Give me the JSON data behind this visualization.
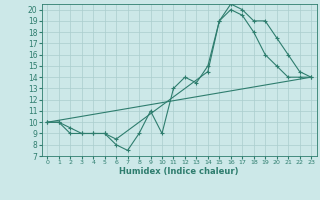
{
  "line1_x": [
    0,
    1,
    2,
    3,
    4,
    5,
    6,
    7,
    8,
    9,
    10,
    11,
    12,
    13,
    14,
    15,
    16,
    17,
    18,
    19,
    20,
    21,
    22,
    23
  ],
  "line1_y": [
    10,
    10,
    9,
    9,
    9,
    9,
    8,
    7.5,
    9,
    11,
    9,
    13,
    14,
    13.5,
    15,
    19,
    20.5,
    20,
    19,
    19,
    17.5,
    16,
    14.5,
    14
  ],
  "line2_x": [
    0,
    1,
    2,
    3,
    4,
    5,
    6,
    14,
    15,
    16,
    17,
    18,
    19,
    20,
    21,
    22,
    23
  ],
  "line2_y": [
    10,
    10,
    9.5,
    9,
    9,
    9,
    8.5,
    14.5,
    19,
    20,
    19.5,
    18,
    16,
    15,
    14,
    14,
    14
  ],
  "line3_x": [
    0,
    23
  ],
  "line3_y": [
    10,
    14
  ],
  "color": "#2e7d6e",
  "bg_color": "#cce8e8",
  "xlabel": "Humidex (Indice chaleur)",
  "xlim": [
    -0.5,
    23.5
  ],
  "ylim": [
    7,
    20.5
  ],
  "yticks": [
    7,
    8,
    9,
    10,
    11,
    12,
    13,
    14,
    15,
    16,
    17,
    18,
    19,
    20
  ],
  "xticks": [
    0,
    1,
    2,
    3,
    4,
    5,
    6,
    7,
    8,
    9,
    10,
    11,
    12,
    13,
    14,
    15,
    16,
    17,
    18,
    19,
    20,
    21,
    22,
    23
  ],
  "grid_color": "#aacece",
  "marker": "+",
  "markersize": 3.5,
  "linewidth": 0.8
}
